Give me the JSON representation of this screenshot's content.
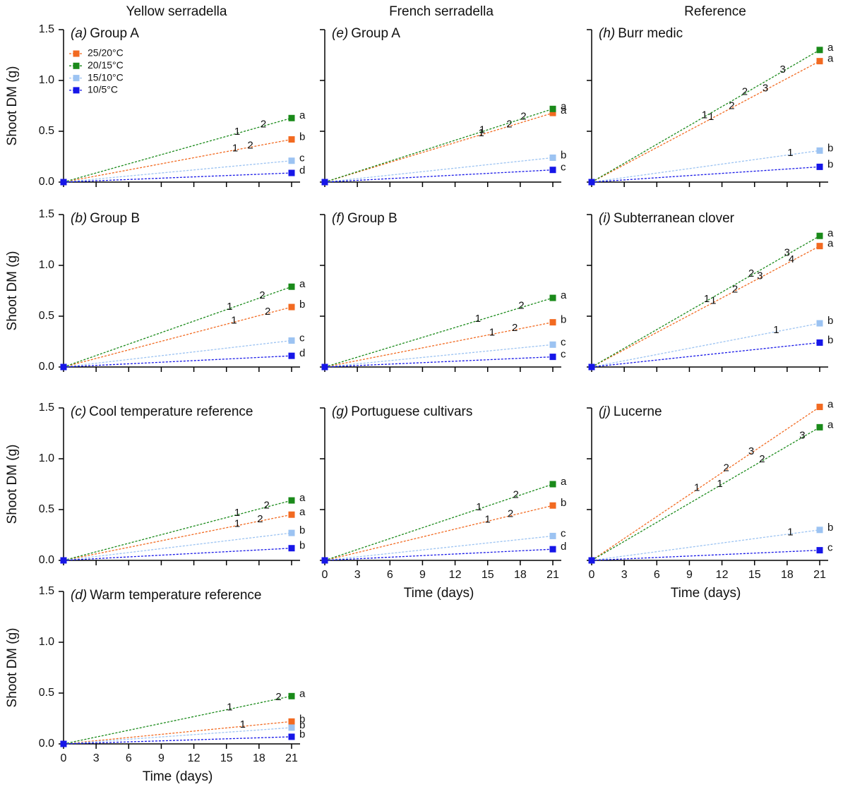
{
  "columns": [
    "Yellow serradella",
    "French serradella",
    "Reference"
  ],
  "ylabel": "Shoot DM (g)",
  "xlabel": "Time (days)",
  "chart_data": [
    {
      "type": "line",
      "label": "(a)",
      "title": "Group A",
      "legend": true,
      "x": [
        0,
        21
      ],
      "xlim": [
        0,
        21
      ],
      "ylim": [
        0,
        1.5
      ],
      "xticks": [
        0,
        3,
        6,
        9,
        12,
        15,
        18,
        21
      ],
      "yticks": [
        {
          "value": 0,
          "label": "0.0"
        },
        0.5,
        {
          "value": 1,
          "label": "1.0"
        },
        1.5
      ],
      "series": [
        {
          "name": "25/20°C",
          "color": "#f26a21",
          "values": [
            0,
            0.42
          ],
          "label": "b",
          "annotations": [
            {
              "text": "1",
              "x": 15.8
            },
            {
              "text": "2",
              "x": 17.2
            }
          ]
        },
        {
          "name": "20/15°C",
          "color": "#1a8a1a",
          "values": [
            0,
            0.63
          ],
          "label": "a",
          "annotations": [
            {
              "text": "1",
              "x": 16
            },
            {
              "text": "2",
              "x": 18.4
            }
          ]
        },
        {
          "name": "15/10°C",
          "color": "#9cc3f2",
          "values": [
            0,
            0.21
          ],
          "label": "c",
          "annotations": []
        },
        {
          "name": "10/5°C",
          "color": "#1616e8",
          "values": [
            0,
            0.09
          ],
          "label": "d",
          "annotations": []
        }
      ]
    },
    {
      "type": "line",
      "label": "(b)",
      "title": "Group B",
      "x": [
        0,
        21
      ],
      "xlim": [
        0,
        21
      ],
      "ylim": [
        0,
        1.5
      ],
      "xticks": [
        0,
        3,
        6,
        9,
        12,
        15,
        18,
        21
      ],
      "yticks": [
        {
          "value": 0,
          "label": "0.0"
        },
        0.5,
        {
          "value": 1,
          "label": "1.0"
        },
        1.5
      ],
      "series": [
        {
          "name": "25/20°C",
          "color": "#f26a21",
          "values": [
            0,
            0.59
          ],
          "label": "b",
          "annotations": [
            {
              "text": "1",
              "x": 15.7
            },
            {
              "text": "2",
              "x": 18.8
            }
          ]
        },
        {
          "name": "20/15°C",
          "color": "#1a8a1a",
          "values": [
            0,
            0.79
          ],
          "label": "a",
          "annotations": [
            {
              "text": "1",
              "x": 15.3
            },
            {
              "text": "2",
              "x": 18.3
            }
          ]
        },
        {
          "name": "15/10°C",
          "color": "#9cc3f2",
          "values": [
            0,
            0.26
          ],
          "label": "c",
          "annotations": []
        },
        {
          "name": "10/5°C",
          "color": "#1616e8",
          "values": [
            0,
            0.11
          ],
          "label": "d",
          "annotations": []
        }
      ]
    },
    {
      "type": "line",
      "label": "(c)",
      "title": "Cool temperature reference",
      "x": [
        0,
        21
      ],
      "xlim": [
        0,
        21
      ],
      "ylim": [
        0,
        1.5
      ],
      "xticks": [
        0,
        3,
        6,
        9,
        12,
        15,
        18,
        21
      ],
      "yticks": [
        {
          "value": 0,
          "label": "0.0"
        },
        0.5,
        {
          "value": 1,
          "label": "1.0"
        },
        1.5
      ],
      "series": [
        {
          "name": "25/20°C",
          "color": "#f26a21",
          "values": [
            0,
            0.45
          ],
          "label": "a",
          "annotations": [
            {
              "text": "1",
              "x": 16
            },
            {
              "text": "2",
              "x": 18.1
            }
          ]
        },
        {
          "name": "20/15°C",
          "color": "#1a8a1a",
          "values": [
            0,
            0.59
          ],
          "label": "a",
          "annotations": [
            {
              "text": "1",
              "x": 16
            },
            {
              "text": "2",
              "x": 18.7
            }
          ]
        },
        {
          "name": "15/10°C",
          "color": "#9cc3f2",
          "values": [
            0,
            0.27
          ],
          "label": "b",
          "annotations": []
        },
        {
          "name": "10/5°C",
          "color": "#1616e8",
          "values": [
            0,
            0.12
          ],
          "label": "b",
          "annotations": []
        }
      ]
    },
    {
      "type": "line",
      "label": "(d)",
      "title": "Warm temperature reference",
      "x": [
        0,
        21
      ],
      "xlim": [
        0,
        21
      ],
      "ylim": [
        0,
        1.5
      ],
      "xticks": [
        0,
        3,
        6,
        9,
        12,
        15,
        18,
        21
      ],
      "yticks": [
        {
          "value": 0,
          "label": "0.0"
        },
        0.5,
        {
          "value": 1,
          "label": "1.0"
        },
        1.5
      ],
      "series": [
        {
          "name": "25/20°C",
          "color": "#f26a21",
          "values": [
            0,
            0.22
          ],
          "label": "b",
          "annotations": [
            {
              "text": "1",
              "x": 16.5
            }
          ]
        },
        {
          "name": "20/15°C",
          "color": "#1a8a1a",
          "values": [
            0,
            0.47
          ],
          "label": "a",
          "annotations": [
            {
              "text": "1",
              "x": 15.3
            },
            {
              "text": "2",
              "x": 19.8
            }
          ]
        },
        {
          "name": "15/10°C",
          "color": "#9cc3f2",
          "values": [
            0,
            0.16
          ],
          "label": "b",
          "annotations": []
        },
        {
          "name": "10/5°C",
          "color": "#1616e8",
          "values": [
            0,
            0.07
          ],
          "label": "b",
          "annotations": []
        }
      ]
    },
    {
      "type": "line",
      "label": "(e)",
      "title": "Group A",
      "x": [
        0,
        21
      ],
      "xlim": [
        0,
        21
      ],
      "ylim": [
        0,
        1.5
      ],
      "xticks": [
        0,
        3,
        6,
        9,
        12,
        15,
        18,
        21
      ],
      "yticks": [
        {
          "value": 0,
          "label": "0.0"
        },
        0.5,
        {
          "value": 1,
          "label": "1.0"
        },
        1.5
      ],
      "series": [
        {
          "name": "25/20°C",
          "color": "#f26a21",
          "values": [
            0,
            0.68
          ],
          "label": "a",
          "annotations": [
            {
              "text": "1",
              "x": 14.4
            },
            {
              "text": "2",
              "x": 17
            }
          ]
        },
        {
          "name": "20/15°C",
          "color": "#1a8a1a",
          "values": [
            0,
            0.72
          ],
          "label": "a",
          "annotations": [
            {
              "text": "1",
              "x": 14.5
            },
            {
              "text": "2",
              "x": 18.3
            }
          ]
        },
        {
          "name": "15/10°C",
          "color": "#9cc3f2",
          "values": [
            0,
            0.24
          ],
          "label": "b",
          "annotations": []
        },
        {
          "name": "10/5°C",
          "color": "#1616e8",
          "values": [
            0,
            0.12
          ],
          "label": "c",
          "annotations": []
        }
      ]
    },
    {
      "type": "line",
      "label": "(f)",
      "title": "Group B",
      "x": [
        0,
        21
      ],
      "xlim": [
        0,
        21
      ],
      "ylim": [
        0,
        1.5
      ],
      "xticks": [
        0,
        3,
        6,
        9,
        12,
        15,
        18,
        21
      ],
      "yticks": [
        {
          "value": 0,
          "label": "0.0"
        },
        0.5,
        {
          "value": 1,
          "label": "1.0"
        },
        1.5
      ],
      "series": [
        {
          "name": "25/20°C",
          "color": "#f26a21",
          "values": [
            0,
            0.44
          ],
          "label": "b",
          "annotations": [
            {
              "text": "1",
              "x": 15.4
            },
            {
              "text": "2",
              "x": 17.5
            }
          ]
        },
        {
          "name": "20/15°C",
          "color": "#1a8a1a",
          "values": [
            0,
            0.68
          ],
          "label": "a",
          "annotations": [
            {
              "text": "1",
              "x": 14.1
            },
            {
              "text": "2",
              "x": 18.1
            }
          ]
        },
        {
          "name": "15/10°C",
          "color": "#9cc3f2",
          "values": [
            0,
            0.22
          ],
          "label": "c",
          "annotations": []
        },
        {
          "name": "10/5°C",
          "color": "#1616e8",
          "values": [
            0,
            0.1
          ],
          "label": "c",
          "annotations": []
        }
      ]
    },
    {
      "type": "line",
      "label": "(g)",
      "title": "Portuguese cultivars",
      "x": [
        0,
        21
      ],
      "xlim": [
        0,
        21
      ],
      "ylim": [
        0,
        1.5
      ],
      "xticks": [
        0,
        3,
        6,
        9,
        12,
        15,
        18,
        21
      ],
      "yticks": [
        {
          "value": 0,
          "label": "0.0"
        },
        0.5,
        {
          "value": 1,
          "label": "1.0"
        },
        1.5
      ],
      "series": [
        {
          "name": "25/20°C",
          "color": "#f26a21",
          "values": [
            0,
            0.54
          ],
          "label": "b",
          "annotations": [
            {
              "text": "1",
              "x": 15
            },
            {
              "text": "2",
              "x": 17.1
            }
          ]
        },
        {
          "name": "20/15°C",
          "color": "#1a8a1a",
          "values": [
            0,
            0.75
          ],
          "label": "a",
          "annotations": [
            {
              "text": "1",
              "x": 14.2
            },
            {
              "text": "2",
              "x": 17.6
            }
          ]
        },
        {
          "name": "15/10°C",
          "color": "#9cc3f2",
          "values": [
            0,
            0.24
          ],
          "label": "c",
          "annotations": []
        },
        {
          "name": "10/5°C",
          "color": "#1616e8",
          "values": [
            0,
            0.11
          ],
          "label": "d",
          "annotations": []
        }
      ]
    },
    {
      "type": "line",
      "label": "(h)",
      "title": "Burr medic",
      "x": [
        0,
        21
      ],
      "xlim": [
        0,
        21
      ],
      "ylim": [
        0,
        1.5
      ],
      "xticks": [
        0,
        3,
        6,
        9,
        12,
        15,
        18,
        21
      ],
      "yticks": [
        {
          "value": 0,
          "label": "0.0"
        },
        0.5,
        {
          "value": 1,
          "label": "1.0"
        },
        1.5
      ],
      "series": [
        {
          "name": "25/20°C",
          "color": "#f26a21",
          "values": [
            0,
            1.19
          ],
          "label": "a",
          "annotations": [
            {
              "text": "1",
              "x": 11
            },
            {
              "text": "2",
              "x": 12.9
            },
            {
              "text": "3",
              "x": 16
            }
          ]
        },
        {
          "name": "20/15°C",
          "color": "#1a8a1a",
          "values": [
            0,
            1.3
          ],
          "label": "a",
          "annotations": [
            {
              "text": "1",
              "x": 10.4
            },
            {
              "text": "2",
              "x": 14.1
            },
            {
              "text": "3",
              "x": 17.6
            }
          ]
        },
        {
          "name": "15/10°C",
          "color": "#9cc3f2",
          "values": [
            0,
            0.31
          ],
          "label": "b",
          "annotations": [
            {
              "text": "1",
              "x": 18.3
            }
          ]
        },
        {
          "name": "10/5°C",
          "color": "#1616e8",
          "values": [
            0,
            0.15
          ],
          "label": "b",
          "annotations": []
        }
      ]
    },
    {
      "type": "line",
      "label": "(i)",
      "title": "Subterranean clover",
      "x": [
        0,
        21
      ],
      "xlim": [
        0,
        21
      ],
      "ylim": [
        0,
        1.5
      ],
      "xticks": [
        0,
        3,
        6,
        9,
        12,
        15,
        18,
        21
      ],
      "yticks": [
        {
          "value": 0,
          "label": "0.0"
        },
        0.5,
        {
          "value": 1,
          "label": "1.0"
        },
        1.5
      ],
      "series": [
        {
          "name": "25/20°C",
          "color": "#f26a21",
          "values": [
            0,
            1.19
          ],
          "label": "a",
          "annotations": [
            {
              "text": "1",
              "x": 11.2
            },
            {
              "text": "2",
              "x": 13.2
            },
            {
              "text": "3",
              "x": 15.5
            },
            {
              "text": "4",
              "x": 18.4
            }
          ]
        },
        {
          "name": "20/15°C",
          "color": "#1a8a1a",
          "values": [
            0,
            1.29
          ],
          "label": "a",
          "annotations": [
            {
              "text": "1",
              "x": 10.6
            },
            {
              "text": "2",
              "x": 14.7
            },
            {
              "text": "3",
              "x": 18
            }
          ]
        },
        {
          "name": "15/10°C",
          "color": "#9cc3f2",
          "values": [
            0,
            0.43
          ],
          "label": "b",
          "annotations": [
            {
              "text": "1",
              "x": 17
            }
          ]
        },
        {
          "name": "10/5°C",
          "color": "#1616e8",
          "values": [
            0,
            0.24
          ],
          "label": "b",
          "annotations": []
        }
      ]
    },
    {
      "type": "line",
      "label": "(j)",
      "title": "Lucerne",
      "x": [
        0,
        21
      ],
      "xlim": [
        0,
        21
      ],
      "ylim": [
        0,
        1.5
      ],
      "xticks": [
        0,
        3,
        6,
        9,
        12,
        15,
        18,
        21
      ],
      "yticks": [
        {
          "value": 0,
          "label": "0.0"
        },
        0.5,
        {
          "value": 1,
          "label": "1.0"
        },
        1.5
      ],
      "series": [
        {
          "name": "25/20°C",
          "color": "#f26a21",
          "values": [
            0,
            1.51
          ],
          "label": "a",
          "annotations": [
            {
              "text": "1",
              "x": 9.7
            },
            {
              "text": "2",
              "x": 12.4
            },
            {
              "text": "3",
              "x": 14.7
            }
          ]
        },
        {
          "name": "20/15°C",
          "color": "#1a8a1a",
          "values": [
            0,
            1.31
          ],
          "label": "a",
          "annotations": [
            {
              "text": "1",
              "x": 11.8
            },
            {
              "text": "2",
              "x": 15.7
            },
            {
              "text": "3",
              "x": 19.4
            }
          ]
        },
        {
          "name": "15/10°C",
          "color": "#9cc3f2",
          "values": [
            0,
            0.3
          ],
          "label": "b",
          "annotations": [
            {
              "text": "1",
              "x": 18.3
            }
          ]
        },
        {
          "name": "10/5°C",
          "color": "#1616e8",
          "values": [
            0,
            0.1
          ],
          "label": "c",
          "annotations": []
        }
      ]
    }
  ]
}
